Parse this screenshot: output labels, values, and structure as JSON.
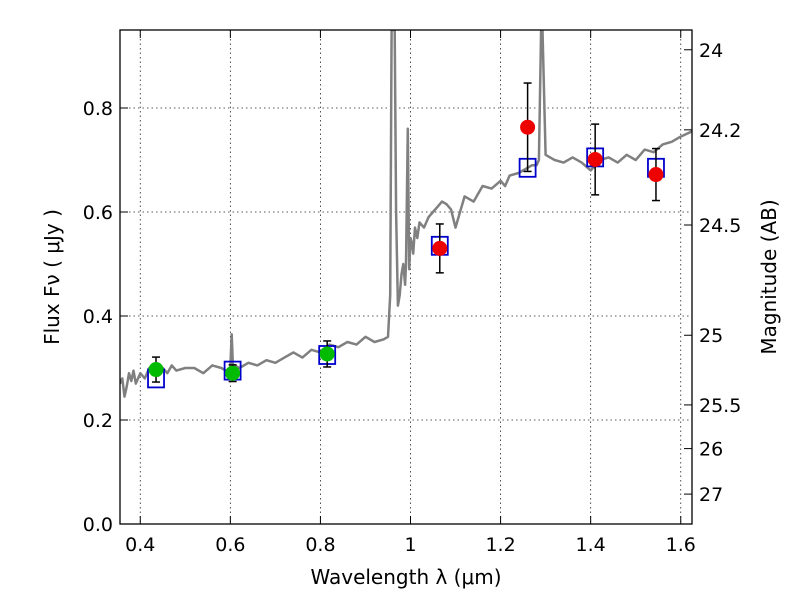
{
  "chart_data": {
    "type": "scatter",
    "xlabel": "Wavelength  λ (μm)",
    "ylabel": "Flux  Fν  ( μJy )",
    "ylabel_right": "Magnitude (AB)",
    "xlim": [
      0.355,
      1.625
    ],
    "ylim": [
      0.0,
      0.95
    ],
    "grid": true,
    "x_ticks": [
      0.4,
      0.6,
      0.8,
      1.0,
      1.2,
      1.4,
      1.6
    ],
    "x_tick_labels": [
      "0.4",
      "0.6",
      "0.8",
      "1",
      "1.2",
      "1.4",
      "1.6"
    ],
    "y_ticks": [
      0.0,
      0.2,
      0.4,
      0.6,
      0.8
    ],
    "y_tick_labels": [
      "0.0",
      "0.2",
      "0.4",
      "0.6",
      "0.8"
    ],
    "right_ticks": [
      {
        "label": "24",
        "mag": 24.0
      },
      {
        "label": "24.2",
        "mag": 24.2
      },
      {
        "label": "24.5",
        "mag": 24.5
      },
      {
        "label": "25",
        "mag": 25.0
      },
      {
        "label": "25.5",
        "mag": 25.5
      },
      {
        "label": "26",
        "mag": 26.0
      },
      {
        "label": "27",
        "mag": 27.0
      }
    ],
    "right_tick_flux": [
      0.912,
      0.758,
      0.575,
      0.363,
      0.229,
      0.145,
      0.0575
    ],
    "colors": {
      "spectrum": "#808080",
      "model_box": "#0000cc",
      "optical": "#00bb00",
      "nir": "#ee0000",
      "errorbar": "#000000"
    },
    "series": [
      {
        "type": "line",
        "x": [
          0.355,
          0.36,
          0.365,
          0.37,
          0.375,
          0.38,
          0.385,
          0.39,
          0.4,
          0.41,
          0.42,
          0.43,
          0.44,
          0.45,
          0.46,
          0.47,
          0.48,
          0.5,
          0.52,
          0.54,
          0.56,
          0.58,
          0.59,
          0.6,
          0.603,
          0.606,
          0.61,
          0.62,
          0.64,
          0.66,
          0.68,
          0.7,
          0.72,
          0.74,
          0.76,
          0.78,
          0.8,
          0.82,
          0.84,
          0.86,
          0.88,
          0.9,
          0.92,
          0.94,
          0.95,
          0.955,
          0.958,
          0.962,
          0.965,
          0.968,
          0.972,
          0.976,
          0.98,
          0.984,
          0.988,
          0.99,
          0.994,
          0.997,
          1.0,
          1.003,
          1.006,
          1.01,
          1.015,
          1.02,
          1.03,
          1.04,
          1.05,
          1.06,
          1.07,
          1.08,
          1.09,
          1.1,
          1.12,
          1.14,
          1.16,
          1.18,
          1.2,
          1.21,
          1.22,
          1.24,
          1.26,
          1.27,
          1.28,
          1.285,
          1.29,
          1.293,
          1.3,
          1.31,
          1.32,
          1.34,
          1.36,
          1.38,
          1.4,
          1.42,
          1.44,
          1.46,
          1.48,
          1.5,
          1.52,
          1.54,
          1.56,
          1.58,
          1.6,
          1.625
        ],
        "y": [
          0.27,
          0.28,
          0.245,
          0.265,
          0.29,
          0.275,
          0.295,
          0.27,
          0.29,
          0.28,
          0.3,
          0.295,
          0.285,
          0.3,
          0.29,
          0.305,
          0.295,
          0.3,
          0.3,
          0.29,
          0.305,
          0.3,
          0.295,
          0.3,
          0.365,
          0.3,
          0.305,
          0.3,
          0.31,
          0.305,
          0.315,
          0.31,
          0.32,
          0.33,
          0.32,
          0.335,
          0.33,
          0.345,
          0.34,
          0.35,
          0.345,
          0.36,
          0.35,
          0.355,
          0.36,
          0.44,
          0.95,
          0.95,
          0.95,
          0.6,
          0.42,
          0.44,
          0.48,
          0.5,
          0.46,
          0.5,
          0.76,
          0.49,
          0.55,
          0.54,
          0.52,
          0.57,
          0.55,
          0.58,
          0.57,
          0.59,
          0.6,
          0.61,
          0.62,
          0.615,
          0.605,
          0.57,
          0.63,
          0.62,
          0.65,
          0.645,
          0.66,
          0.65,
          0.67,
          0.675,
          0.685,
          0.69,
          0.69,
          0.7,
          0.95,
          0.95,
          0.71,
          0.705,
          0.7,
          0.695,
          0.705,
          0.695,
          0.68,
          0.7,
          0.705,
          0.695,
          0.71,
          0.7,
          0.72,
          0.715,
          0.73,
          0.735,
          0.745,
          0.755
        ]
      },
      {
        "type": "model",
        "x": [
          0.435,
          0.605,
          0.815,
          1.065,
          1.26,
          1.41,
          1.545
        ],
        "y": [
          0.28,
          0.295,
          0.325,
          0.535,
          0.685,
          0.705,
          0.685
        ]
      },
      {
        "type": "observed_optical",
        "x": [
          0.435,
          0.605,
          0.815
        ],
        "y": [
          0.297,
          0.29,
          0.327
        ],
        "yerr": [
          0.024,
          0.016,
          0.025
        ]
      },
      {
        "type": "observed_nir",
        "x": [
          1.065,
          1.26,
          1.41,
          1.545
        ],
        "y": [
          0.53,
          0.763,
          0.701,
          0.672
        ],
        "yerr": [
          0.047,
          0.085,
          0.068,
          0.05
        ]
      }
    ]
  }
}
